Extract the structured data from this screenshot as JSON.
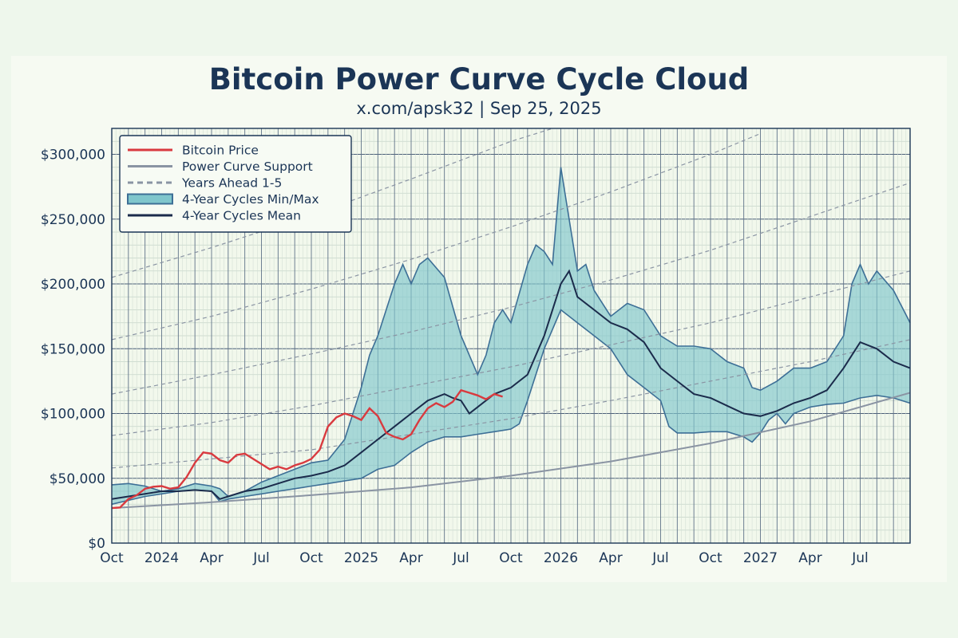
{
  "chart_data": {
    "type": "line",
    "title": "Bitcoin Power Curve Cycle Cloud",
    "subtitle": "x.com/apsk32 | Sep 25, 2025",
    "x_range": [
      "2023-10-01",
      "2027-10-01"
    ],
    "ylim": [
      0,
      320000
    ],
    "y_ticks": [
      {
        "value": 0,
        "label": "$0"
      },
      {
        "value": 50000,
        "label": "$50,000"
      },
      {
        "value": 100000,
        "label": "$100,000"
      },
      {
        "value": 150000,
        "label": "$150,000"
      },
      {
        "value": 200000,
        "label": "$200,000"
      },
      {
        "value": 250000,
        "label": "$250,000"
      },
      {
        "value": 300000,
        "label": "$300,000"
      }
    ],
    "x_ticks": [
      {
        "month": 0,
        "label": "Oct"
      },
      {
        "month": 3,
        "label": "2024"
      },
      {
        "month": 6,
        "label": "Apr"
      },
      {
        "month": 9,
        "label": "Jul"
      },
      {
        "month": 12,
        "label": "Oct"
      },
      {
        "month": 15,
        "label": "2025"
      },
      {
        "month": 18,
        "label": "Apr"
      },
      {
        "month": 21,
        "label": "Jul"
      },
      {
        "month": 24,
        "label": "Oct"
      },
      {
        "month": 27,
        "label": "2026"
      },
      {
        "month": 30,
        "label": "Apr"
      },
      {
        "month": 33,
        "label": "Jul"
      },
      {
        "month": 36,
        "label": "Oct"
      },
      {
        "month": 39,
        "label": "2027"
      },
      {
        "month": 42,
        "label": "Apr"
      },
      {
        "month": 45,
        "label": "Jul"
      }
    ],
    "legend": [
      {
        "label": "Bitcoin Price",
        "style": "line",
        "color": "#d93a3f"
      },
      {
        "label": "Power Curve Support",
        "style": "line",
        "color": "#8a94a3"
      },
      {
        "label": "Years Ahead 1-5",
        "style": "dashed",
        "color": "#8a94a3"
      },
      {
        "label": "4-Year Cycles Min/Max",
        "style": "band",
        "color": "#7fc6cc"
      },
      {
        "label": "4-Year Cycles Mean",
        "style": "line",
        "color": "#1b2b4b"
      }
    ],
    "series": [
      {
        "name": "Power Curve Support",
        "points": [
          [
            0,
            27000
          ],
          [
            6,
            31500
          ],
          [
            12,
            37000
          ],
          [
            18,
            43000
          ],
          [
            24,
            52000
          ],
          [
            30,
            63000
          ],
          [
            36,
            77000
          ],
          [
            42,
            94000
          ],
          [
            48,
            116000
          ]
        ]
      },
      {
        "name": "Years Ahead 1",
        "points": [
          [
            0,
            58000
          ],
          [
            6,
            65000
          ],
          [
            12,
            72000
          ],
          [
            18,
            84000
          ],
          [
            24,
            96000
          ],
          [
            30,
            110000
          ],
          [
            36,
            125000
          ],
          [
            42,
            140000
          ],
          [
            48,
            157000
          ]
        ]
      },
      {
        "name": "Years Ahead 2",
        "points": [
          [
            0,
            83000
          ],
          [
            6,
            93000
          ],
          [
            12,
            106000
          ],
          [
            18,
            121000
          ],
          [
            24,
            136000
          ],
          [
            30,
            153000
          ],
          [
            36,
            170000
          ],
          [
            42,
            190000
          ],
          [
            48,
            210000
          ]
        ]
      },
      {
        "name": "Years Ahead 3",
        "points": [
          [
            0,
            115000
          ],
          [
            6,
            130000
          ],
          [
            12,
            146000
          ],
          [
            18,
            163000
          ],
          [
            24,
            182000
          ],
          [
            30,
            203000
          ],
          [
            36,
            226000
          ],
          [
            42,
            252000
          ],
          [
            48,
            278000
          ]
        ]
      },
      {
        "name": "Years Ahead 4",
        "points": [
          [
            0,
            157000
          ],
          [
            6,
            175000
          ],
          [
            12,
            196000
          ],
          [
            18,
            219000
          ],
          [
            24,
            244000
          ],
          [
            30,
            271000
          ],
          [
            36,
            300000
          ],
          [
            39,
            316000
          ]
        ]
      },
      {
        "name": "Years Ahead 5",
        "points": [
          [
            0,
            205000
          ],
          [
            6,
            228000
          ],
          [
            12,
            253000
          ],
          [
            18,
            281000
          ],
          [
            24,
            310000
          ],
          [
            27,
            322000
          ]
        ]
      },
      {
        "name": "4-Year Cycles Max",
        "points": [
          [
            0,
            45000
          ],
          [
            1,
            46000
          ],
          [
            2,
            44000
          ],
          [
            3,
            40000
          ],
          [
            4,
            42000
          ],
          [
            5,
            46000
          ],
          [
            6,
            44000
          ],
          [
            6.5,
            42000
          ],
          [
            7,
            36000
          ],
          [
            8,
            40000
          ],
          [
            9,
            47000
          ],
          [
            10,
            52000
          ],
          [
            11,
            57000
          ],
          [
            12,
            62000
          ],
          [
            13,
            64000
          ],
          [
            14,
            80000
          ],
          [
            15,
            120000
          ],
          [
            15.5,
            145000
          ],
          [
            16,
            160000
          ],
          [
            17,
            200000
          ],
          [
            17.5,
            215000
          ],
          [
            18,
            200000
          ],
          [
            18.5,
            215000
          ],
          [
            19,
            220000
          ],
          [
            20,
            205000
          ],
          [
            21,
            160000
          ],
          [
            21.5,
            145000
          ],
          [
            22,
            130000
          ],
          [
            22.5,
            145000
          ],
          [
            23,
            170000
          ],
          [
            23.5,
            180000
          ],
          [
            24,
            170000
          ],
          [
            25,
            215000
          ],
          [
            25.5,
            230000
          ],
          [
            26,
            225000
          ],
          [
            26.5,
            215000
          ],
          [
            27,
            290000
          ],
          [
            27.5,
            250000
          ],
          [
            28,
            210000
          ],
          [
            28.5,
            215000
          ],
          [
            29,
            195000
          ],
          [
            30,
            175000
          ],
          [
            31,
            185000
          ],
          [
            32,
            180000
          ],
          [
            33,
            160000
          ],
          [
            34,
            152000
          ],
          [
            35,
            152000
          ],
          [
            36,
            150000
          ],
          [
            37,
            140000
          ],
          [
            38,
            135000
          ],
          [
            38.5,
            120000
          ],
          [
            39,
            118000
          ],
          [
            40,
            125000
          ],
          [
            41,
            135000
          ],
          [
            42,
            135000
          ],
          [
            43,
            140000
          ],
          [
            44,
            160000
          ],
          [
            44.5,
            200000
          ],
          [
            45,
            215000
          ],
          [
            45.5,
            200000
          ],
          [
            46,
            210000
          ],
          [
            47,
            195000
          ],
          [
            48,
            170000
          ]
        ]
      },
      {
        "name": "4-Year Cycles Min",
        "points": [
          [
            0,
            30000
          ],
          [
            1,
            33000
          ],
          [
            2,
            36000
          ],
          [
            3,
            38000
          ],
          [
            4,
            40000
          ],
          [
            5,
            41000
          ],
          [
            6,
            40000
          ],
          [
            6.5,
            32000
          ],
          [
            7,
            34000
          ],
          [
            8,
            36000
          ],
          [
            9,
            38000
          ],
          [
            10,
            40000
          ],
          [
            11,
            42000
          ],
          [
            12,
            44000
          ],
          [
            13,
            46000
          ],
          [
            14,
            48000
          ],
          [
            15,
            50000
          ],
          [
            16,
            57000
          ],
          [
            17,
            60000
          ],
          [
            18,
            70000
          ],
          [
            19,
            78000
          ],
          [
            20,
            82000
          ],
          [
            21,
            82000
          ],
          [
            22,
            84000
          ],
          [
            23,
            86000
          ],
          [
            24,
            88000
          ],
          [
            24.5,
            92000
          ],
          [
            25,
            110000
          ],
          [
            26,
            150000
          ],
          [
            27,
            180000
          ],
          [
            28,
            170000
          ],
          [
            29,
            160000
          ],
          [
            30,
            150000
          ],
          [
            31,
            130000
          ],
          [
            32,
            120000
          ],
          [
            33,
            110000
          ],
          [
            33.5,
            90000
          ],
          [
            34,
            85000
          ],
          [
            35,
            85000
          ],
          [
            36,
            86000
          ],
          [
            37,
            86000
          ],
          [
            38,
            82000
          ],
          [
            38.5,
            78000
          ],
          [
            39,
            85000
          ],
          [
            39.5,
            95000
          ],
          [
            40,
            100000
          ],
          [
            40.5,
            92000
          ],
          [
            41,
            100000
          ],
          [
            42,
            105000
          ],
          [
            43,
            107000
          ],
          [
            44,
            108000
          ],
          [
            45,
            112000
          ],
          [
            46,
            114000
          ],
          [
            47,
            112000
          ],
          [
            48,
            108000
          ]
        ]
      },
      {
        "name": "4-Year Cycles Mean",
        "points": [
          [
            0,
            34000
          ],
          [
            1,
            36000
          ],
          [
            2,
            38000
          ],
          [
            3,
            40000
          ],
          [
            4,
            40000
          ],
          [
            5,
            41000
          ],
          [
            6,
            40000
          ],
          [
            6.5,
            34000
          ],
          [
            7,
            36000
          ],
          [
            8,
            40000
          ],
          [
            9,
            42000
          ],
          [
            10,
            46000
          ],
          [
            11,
            50000
          ],
          [
            12,
            52000
          ],
          [
            13,
            55000
          ],
          [
            14,
            60000
          ],
          [
            15,
            70000
          ],
          [
            16,
            80000
          ],
          [
            17,
            90000
          ],
          [
            18,
            100000
          ],
          [
            19,
            110000
          ],
          [
            20,
            115000
          ],
          [
            20.5,
            112000
          ],
          [
            21,
            110000
          ],
          [
            21.5,
            100000
          ],
          [
            22,
            105000
          ],
          [
            23,
            115000
          ],
          [
            24,
            120000
          ],
          [
            25,
            130000
          ],
          [
            26,
            160000
          ],
          [
            27,
            200000
          ],
          [
            27.5,
            210000
          ],
          [
            28,
            190000
          ],
          [
            29,
            180000
          ],
          [
            30,
            170000
          ],
          [
            31,
            165000
          ],
          [
            32,
            155000
          ],
          [
            33,
            135000
          ],
          [
            34,
            125000
          ],
          [
            35,
            115000
          ],
          [
            36,
            112000
          ],
          [
            37,
            106000
          ],
          [
            38,
            100000
          ],
          [
            39,
            98000
          ],
          [
            40,
            102000
          ],
          [
            41,
            108000
          ],
          [
            42,
            112000
          ],
          [
            43,
            118000
          ],
          [
            44,
            135000
          ],
          [
            45,
            155000
          ],
          [
            46,
            150000
          ],
          [
            47,
            140000
          ],
          [
            48,
            135000
          ]
        ]
      },
      {
        "name": "Bitcoin Price",
        "points": [
          [
            0,
            27000
          ],
          [
            0.5,
            27500
          ],
          [
            1,
            34000
          ],
          [
            1.5,
            37000
          ],
          [
            2,
            42000
          ],
          [
            2.5,
            43500
          ],
          [
            3,
            44000
          ],
          [
            3.5,
            42000
          ],
          [
            4,
            43000
          ],
          [
            4.5,
            51000
          ],
          [
            5,
            62000
          ],
          [
            5.5,
            70000
          ],
          [
            6,
            69000
          ],
          [
            6.5,
            64000
          ],
          [
            7,
            62000
          ],
          [
            7.5,
            68000
          ],
          [
            8,
            69000
          ],
          [
            8.5,
            65000
          ],
          [
            9,
            61000
          ],
          [
            9.5,
            57000
          ],
          [
            10,
            59000
          ],
          [
            10.5,
            57000
          ],
          [
            11,
            60000
          ],
          [
            11.5,
            62000
          ],
          [
            12,
            65000
          ],
          [
            12.5,
            72000
          ],
          [
            13,
            90000
          ],
          [
            13.5,
            97000
          ],
          [
            14,
            100000
          ],
          [
            14.5,
            98000
          ],
          [
            15,
            95000
          ],
          [
            15.5,
            104000
          ],
          [
            16,
            98000
          ],
          [
            16.5,
            85000
          ],
          [
            17,
            82000
          ],
          [
            17.5,
            80000
          ],
          [
            18,
            84000
          ],
          [
            18.5,
            95000
          ],
          [
            19,
            104000
          ],
          [
            19.5,
            108000
          ],
          [
            20,
            105000
          ],
          [
            20.5,
            109000
          ],
          [
            21,
            118000
          ],
          [
            21.5,
            116000
          ],
          [
            22,
            114000
          ],
          [
            22.5,
            111000
          ],
          [
            23,
            115000
          ],
          [
            23.5,
            113000
          ]
        ]
      }
    ]
  }
}
